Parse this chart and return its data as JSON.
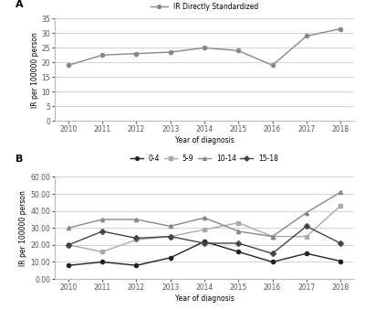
{
  "years": [
    2010,
    2011,
    2012,
    2013,
    2014,
    2015,
    2016,
    2017,
    2018
  ],
  "panel_a": {
    "label": "IR Directly Standardized",
    "values": [
      19.0,
      22.5,
      23.0,
      23.5,
      25.0,
      24.0,
      19.0,
      29.0,
      31.5
    ],
    "color": "#888888",
    "marker": "o",
    "markersize": 3
  },
  "panel_b": {
    "series": [
      {
        "label": "0-4",
        "values": [
          8.0,
          10.0,
          8.0,
          12.5,
          22.0,
          16.0,
          10.0,
          15.0,
          10.5
        ],
        "color": "#222222",
        "marker": "o",
        "markersize": 3
      },
      {
        "label": "5-9",
        "values": [
          20.0,
          16.0,
          23.0,
          25.0,
          29.0,
          33.0,
          25.0,
          25.0,
          43.0
        ],
        "color": "#aaaaaa",
        "marker": "s",
        "markersize": 3
      },
      {
        "label": "10-14",
        "values": [
          30.0,
          35.0,
          35.0,
          31.0,
          36.0,
          28.0,
          25.0,
          39.0,
          51.0
        ],
        "color": "#888888",
        "marker": "^",
        "markersize": 3
      },
      {
        "label": "15-18",
        "values": [
          20.0,
          28.0,
          24.0,
          25.0,
          21.0,
          21.0,
          15.0,
          31.0,
          21.0
        ],
        "color": "#444444",
        "marker": "D",
        "markersize": 3
      }
    ]
  },
  "ylabel_a": "IR per 100000 person",
  "ylabel_b": "IR per 100000 person",
  "xlabel_a": "Year of diagnosis",
  "xlabel_b": "Year of diagnosis",
  "ylim_a": [
    0,
    35
  ],
  "ylim_b": [
    0.0,
    60.0
  ],
  "yticks_a": [
    0,
    5,
    10,
    15,
    20,
    25,
    30,
    35
  ],
  "yticks_b": [
    0.0,
    10.0,
    20.0,
    30.0,
    40.0,
    50.0,
    60.0
  ],
  "background_color": "#ffffff",
  "grid_color": "#cccccc",
  "line_width": 1.0,
  "label_a": "A",
  "label_b": "B"
}
